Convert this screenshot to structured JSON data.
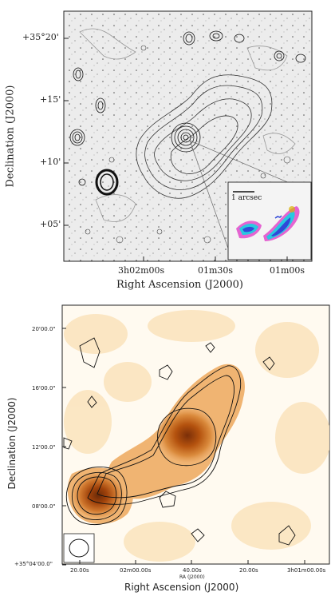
{
  "top_panel": {
    "y_axis_label": "Declination (J2000)",
    "x_axis_label": "Right Ascension (J2000)",
    "y_ticks": [
      "+35°20'",
      "+15'",
      "+10'",
      "+05'"
    ],
    "x_ticks": [
      "3h02m00s",
      "01m30s",
      "01m00s"
    ],
    "inset_scale_label": "1 arcsec",
    "colors": {
      "contour": "#1a1a1a",
      "background": "#e9e9e9",
      "inset_cyan": "#28c8e0",
      "inset_magenta": "#e040c8",
      "inset_blue": "#3048d8"
    }
  },
  "bottom_panel": {
    "y_axis_label": "Declination (J2000)",
    "x_axis_label": "Right Ascension (J2000)",
    "x_axis_sublabel": "RA (J2000)",
    "y_ticks": [
      "20'00.0\"",
      "16'00.0\"",
      "12'00.0\"",
      "08'00.0\"",
      "+35°04'00.0\""
    ],
    "x_ticks": [
      "20.00s",
      "02m00.00s",
      "40.00s",
      "20.00s",
      "3h01m00.00s"
    ],
    "colors": {
      "peak": "#a0420a",
      "mid": "#e39a4c",
      "faint": "#fbe4bf",
      "background": "#fffaf0",
      "contour": "#111111"
    }
  }
}
